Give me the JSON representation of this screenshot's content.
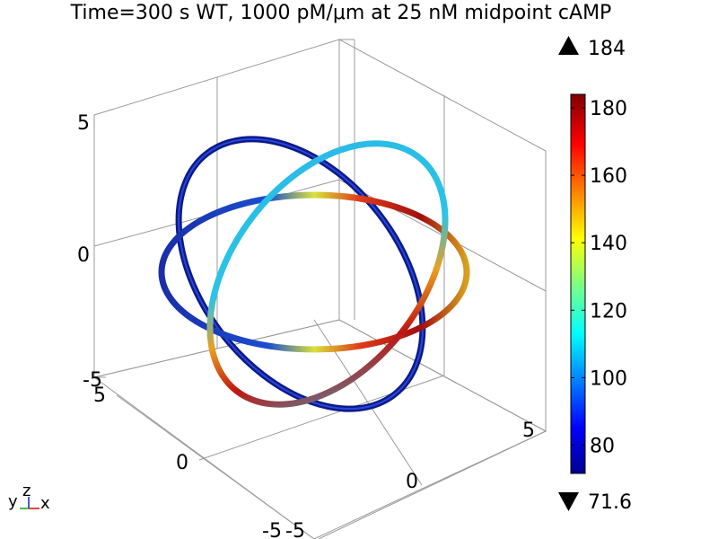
{
  "title": "Time=300 s  WT, 1000 pM/μm at 25 nM midpoint cAMP",
  "axes": {
    "z_ticks": [
      "5",
      "0",
      "-5"
    ],
    "y_ticks": [
      "5",
      "0",
      "-5"
    ],
    "x_ticks": [
      "-5",
      "0",
      "5"
    ],
    "triad": {
      "x": "x",
      "y": "y",
      "z": "z"
    }
  },
  "colorbar": {
    "max": "184",
    "min": "71.6",
    "ticks": [
      "180",
      "160",
      "140",
      "120",
      "100",
      "80"
    ],
    "max_value": 184,
    "min_value": 71.6,
    "icons": {
      "max": "triangle-up-icon",
      "min": "triangle-down-icon"
    }
  }
}
